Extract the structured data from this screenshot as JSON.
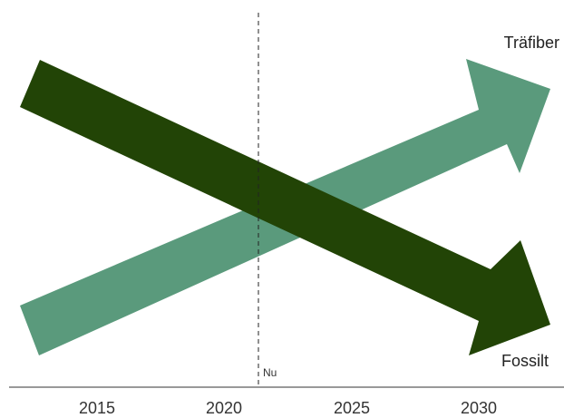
{
  "chart_data": {
    "type": "diagram",
    "x_ticks": [
      "2015",
      "2020",
      "2025",
      "2030"
    ],
    "x_range": [
      2011,
      2033
    ],
    "now_marker": {
      "label": "Nu",
      "x": 2021.2
    },
    "series": [
      {
        "label": "Träfiber",
        "trend": "increasing",
        "color": "#5a9a7c"
      },
      {
        "label": "Fossilt",
        "trend": "decreasing",
        "color": "#224406"
      }
    ]
  }
}
